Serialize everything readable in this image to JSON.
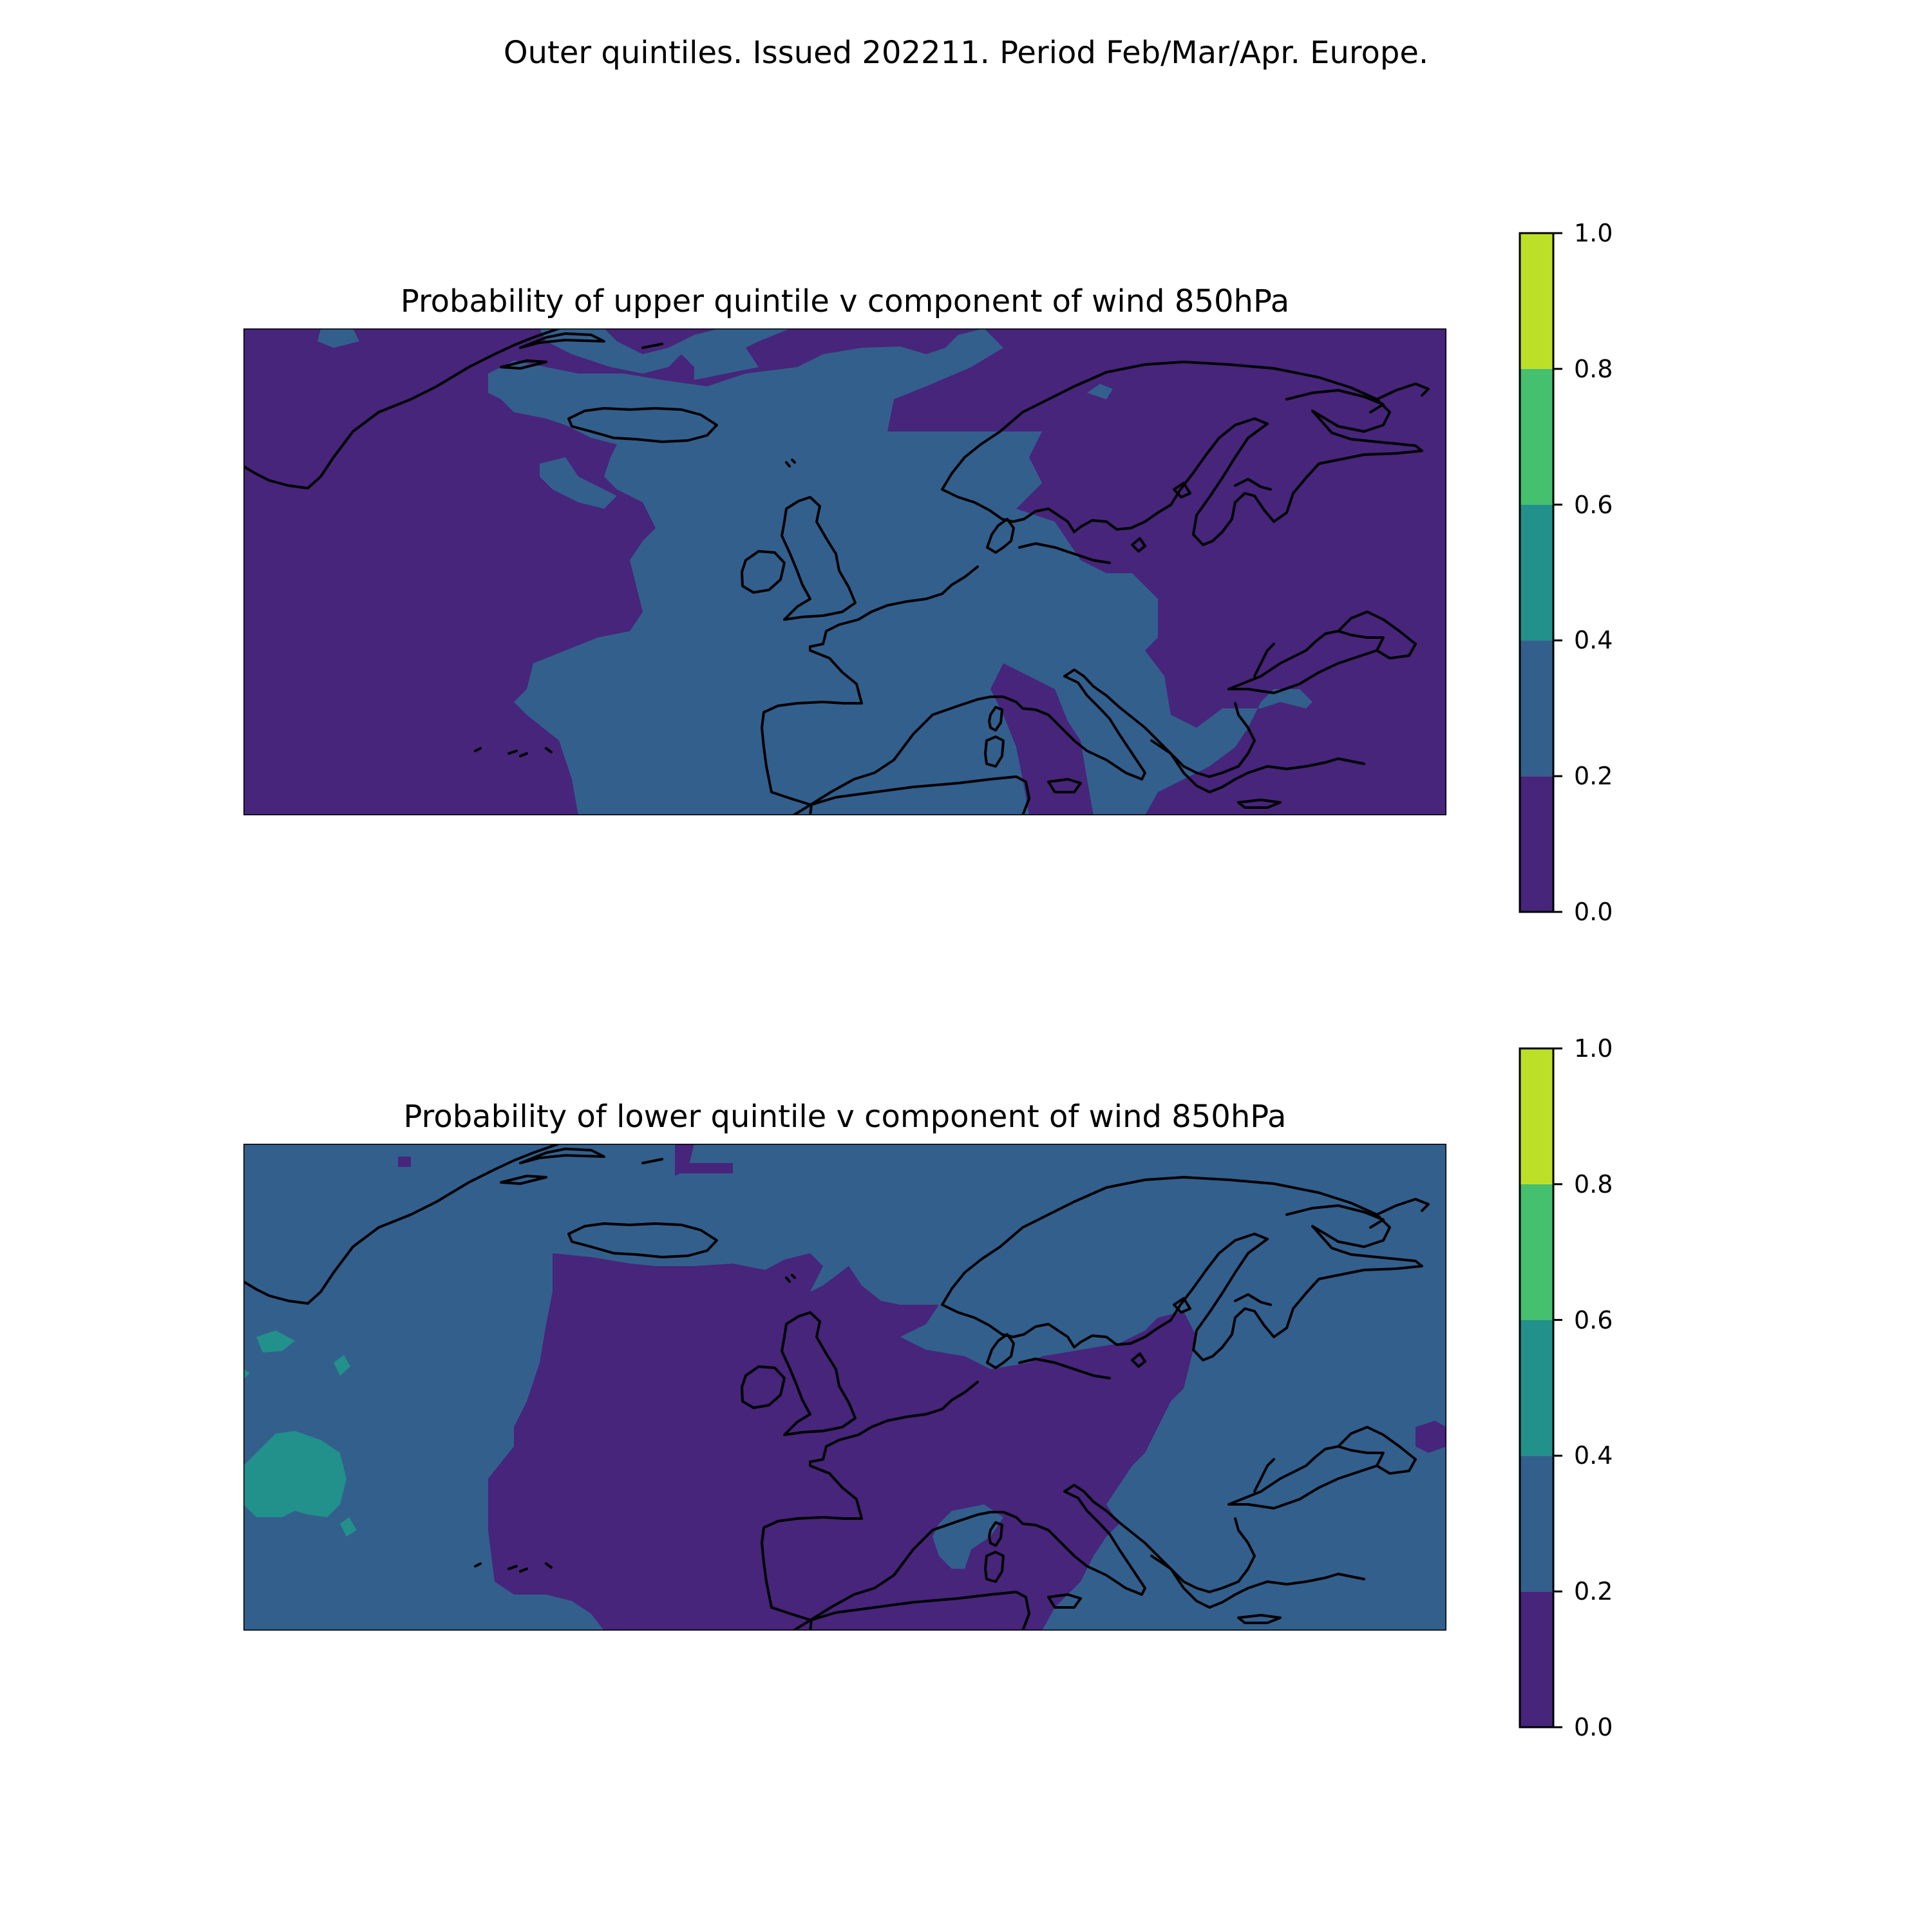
{
  "figure": {
    "title": "Outer quintiles. Issued 202211. Period Feb/Mar/Apr. Europe."
  },
  "colorbar": {
    "ticks": [
      "0.0",
      "0.2",
      "0.4",
      "0.6",
      "0.8",
      "1.0"
    ],
    "levels": [
      {
        "from": 0.0,
        "to": 0.2,
        "color": "#46257a"
      },
      {
        "from": 0.2,
        "to": 0.4,
        "color": "#335f8d"
      },
      {
        "from": 0.4,
        "to": 0.6,
        "color": "#22908b"
      },
      {
        "from": 0.6,
        "to": 0.8,
        "color": "#45c06e"
      },
      {
        "from": 0.8,
        "to": 1.0,
        "color": "#bcdf27"
      }
    ]
  },
  "panels": [
    {
      "title": "Probability of upper quintile v component of wind 850hPa",
      "background_level": "0.0-0.2",
      "main_field_level": "0.2-0.4",
      "description_of_field": "central North Atlantic, British Isles, France, Iberia and central Europe in 0.2-0.4; Greenland, western Atlantic, Scandinavia, eastern Europe and Black Sea region in 0.0-0.2"
    },
    {
      "title": "Probability of lower quintile v component of wind 850hPa",
      "background_level": "0.2-0.4",
      "main_field_level": "0.0-0.2",
      "secondary_field_level": "0.4-0.6",
      "description_of_field": "central Atlantic, British Isles, France, central Europe and Mediterranean in 0.0-0.2; Greenland, Scandinavia, eastern Europe and far western Atlantic in 0.2-0.4; small western Atlantic patches in 0.4-0.6"
    }
  ]
}
